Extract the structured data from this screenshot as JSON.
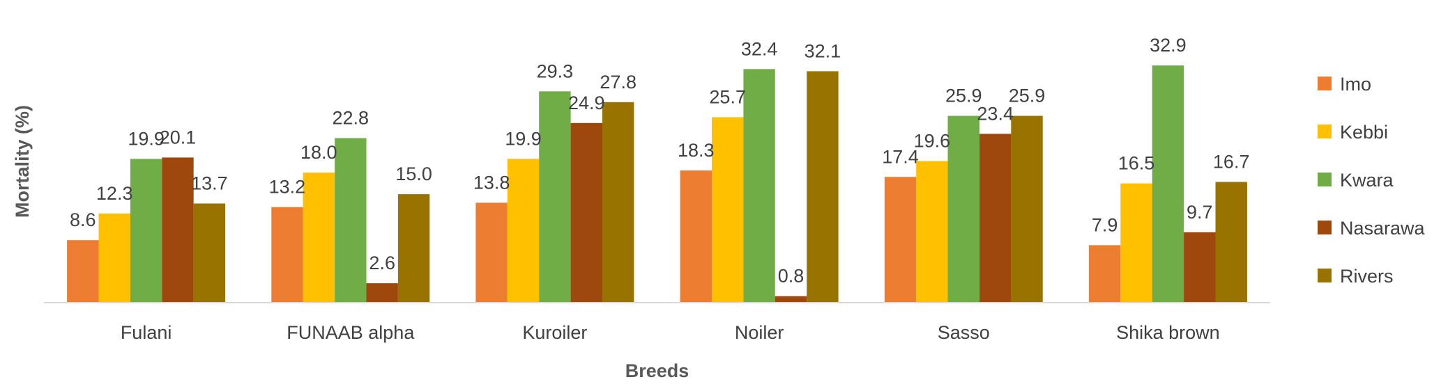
{
  "chart_data": {
    "type": "bar",
    "title": "",
    "xlabel": "Breeds",
    "ylabel": "Mortality (%)",
    "ylim": [
      0,
      36
    ],
    "grid": false,
    "legend_position": "right",
    "categories": [
      "Fulani",
      "FUNAAB alpha",
      "Kuroiler",
      "Noiler",
      "Sasso",
      "Shika brown"
    ],
    "series": [
      {
        "name": "Imo",
        "color": "#ED7D31",
        "values": [
          8.6,
          13.2,
          13.8,
          18.3,
          17.4,
          7.9
        ],
        "labels": [
          "8.6",
          "13.2",
          "13.8",
          "18.3",
          "17.4",
          "7.9"
        ]
      },
      {
        "name": "Kebbi",
        "color": "#FFC000",
        "values": [
          12.3,
          18.0,
          19.9,
          25.7,
          19.6,
          16.5
        ],
        "labels": [
          "12.3",
          "18.0",
          "19.9",
          "25.7",
          "19.6",
          "16.5"
        ]
      },
      {
        "name": "Kwara",
        "color": "#70AD47",
        "values": [
          19.9,
          22.8,
          29.3,
          32.4,
          25.9,
          32.9
        ],
        "labels": [
          "19.9",
          "22.8",
          "29.3",
          "32.4",
          "25.9",
          "32.9"
        ]
      },
      {
        "name": "Nasarawa",
        "color": "#9E480E",
        "values": [
          20.1,
          2.6,
          24.9,
          0.8,
          23.4,
          9.7
        ],
        "labels": [
          "20.1",
          "2.6",
          "24.9",
          "0.8",
          "23.4",
          "9.7"
        ]
      },
      {
        "name": "Rivers",
        "color": "#997300",
        "values": [
          13.7,
          15.0,
          27.8,
          32.1,
          25.9,
          16.7
        ],
        "labels": [
          "13.7",
          "15.0",
          "27.8",
          "32.1",
          "25.9",
          "16.7"
        ]
      }
    ]
  }
}
